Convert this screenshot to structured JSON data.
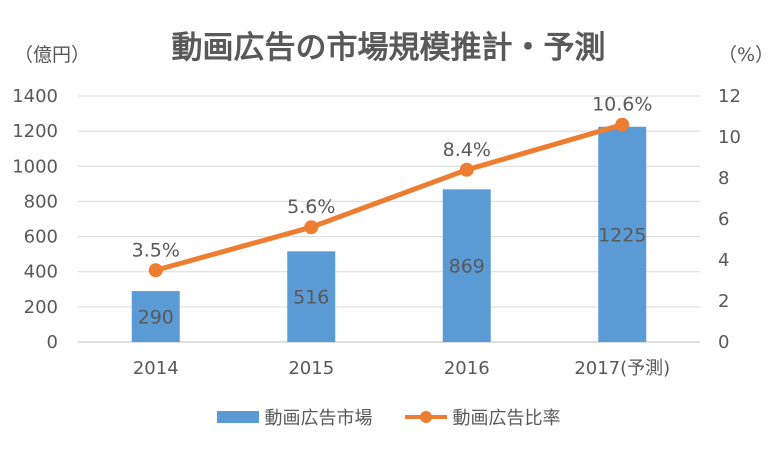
{
  "chart_data": {
    "type": "bar",
    "title": "動画広告の市場規模推計・予測",
    "ylabel_left": "（億円）",
    "ylabel_right": "（%）",
    "categories": [
      "2014",
      "2015",
      "2016",
      "2017(予測)"
    ],
    "ylim_left": [
      0,
      1400
    ],
    "yticks_left": [
      0,
      200,
      400,
      600,
      800,
      1000,
      1200,
      1400
    ],
    "ylim_right": [
      0,
      12
    ],
    "yticks_right": [
      0,
      2,
      4,
      6,
      8,
      10,
      12
    ],
    "grid": true,
    "legend_position": "bottom",
    "series": [
      {
        "name": "動画広告市場",
        "type": "bar",
        "axis": "left",
        "values": [
          290,
          516,
          869,
          1225
        ],
        "labels": [
          "290",
          "516",
          "869",
          "1225"
        ],
        "color": "#5b9bd5"
      },
      {
        "name": "動画広告比率",
        "type": "line",
        "axis": "right",
        "values": [
          3.5,
          5.6,
          8.4,
          10.6
        ],
        "labels": [
          "3.5%",
          "5.6%",
          "8.4%",
          "10.6%"
        ],
        "color": "#ed7d31"
      }
    ]
  }
}
